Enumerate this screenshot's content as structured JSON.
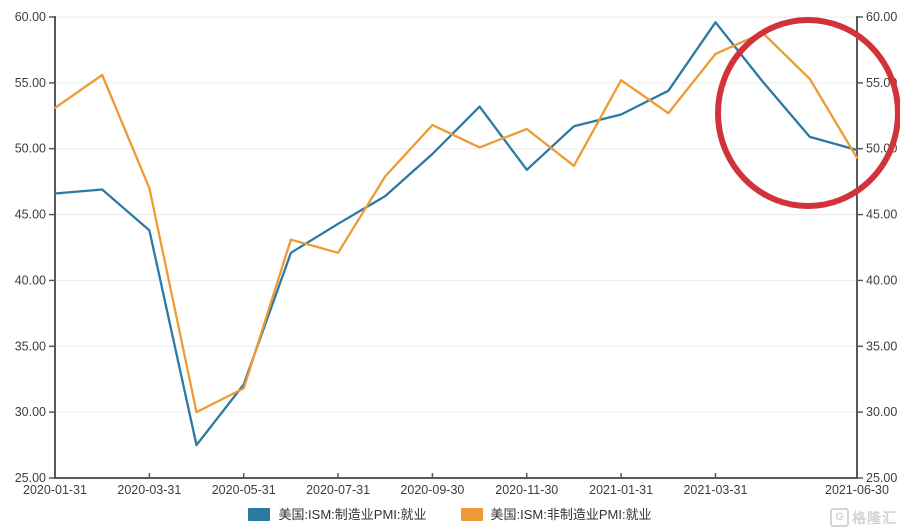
{
  "chart_data": {
    "type": "line",
    "title": "",
    "x": [
      "2020-01-31",
      "2020-02-29",
      "2020-03-31",
      "2020-04-30",
      "2020-05-31",
      "2020-06-30",
      "2020-07-31",
      "2020-08-31",
      "2020-09-30",
      "2020-10-31",
      "2020-11-30",
      "2020-12-31",
      "2021-01-31",
      "2021-02-28",
      "2021-03-31",
      "2021-04-30",
      "2021-05-31",
      "2021-06-30"
    ],
    "series": [
      {
        "name": "美国:ISM:制造业PMI:就业",
        "color": "#2b7aa2",
        "values": [
          46.6,
          46.9,
          43.8,
          27.5,
          32.1,
          42.1,
          44.3,
          46.4,
          49.6,
          53.2,
          48.4,
          51.7,
          52.6,
          54.4,
          59.6,
          55.1,
          50.9,
          49.9
        ]
      },
      {
        "name": "美国:ISM:非制造业PMI:就业",
        "color": "#ee9a35",
        "values": [
          53.1,
          55.6,
          47.0,
          30.0,
          31.8,
          43.1,
          42.1,
          47.9,
          51.8,
          50.1,
          51.5,
          48.7,
          55.2,
          52.7,
          57.2,
          58.8,
          55.3,
          49.3
        ]
      }
    ],
    "ylim": [
      25,
      60
    ],
    "ytick_step": 5,
    "ytick_decimals": 2,
    "y_axis_sides": [
      "left",
      "right"
    ],
    "xtick_labels": [
      "2020-01-31",
      "2020-03-31",
      "2020-05-31",
      "2020-07-31",
      "2020-09-30",
      "2020-11-30",
      "2021-01-31",
      "2021-03-31",
      "2021-06-30"
    ],
    "xtick_indices": [
      0,
      2,
      4,
      6,
      8,
      10,
      12,
      14,
      17
    ],
    "grid": true,
    "legend_position": "bottom",
    "axis_color": "#58595b",
    "grid_color": "#ececec",
    "label_color": "#3d3d3d"
  },
  "annotation_circle": {
    "description": "red highlight circle over recent decline",
    "color": "#d2333a"
  },
  "watermark": {
    "logo_letter": "G",
    "text": "格隆汇"
  }
}
